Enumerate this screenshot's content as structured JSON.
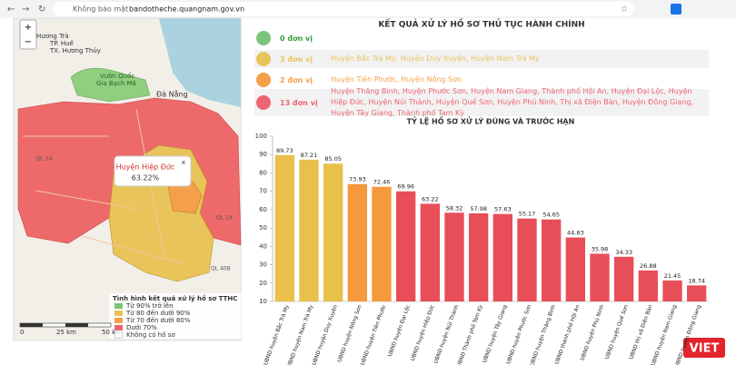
{
  "browser": {
    "security": "Không bảo mật",
    "url": "bandotheche.quangnam.gov.vn"
  },
  "map": {
    "zoom": [
      "+",
      "−"
    ],
    "places": [
      "Hương Trà",
      "TP. Huế",
      "TX. Hương Thủy",
      "Vườn Quốc",
      "Gia Bạch Mã",
      "Đà Nẵng"
    ],
    "roads": [
      "QL 14",
      "QL 1A",
      "QL 40B"
    ],
    "popup": {
      "title": "Huyện Hiệp Đức",
      "value": "63.22%",
      "close": "x"
    },
    "legend": {
      "title": "Tình hình kết quả xử lý hồ sơ TTHC",
      "items": [
        "Từ 90% trở lên",
        "Từ 80 đến dưới 90%",
        "Từ 70 đến dưới 80%",
        "Dưới 70%",
        "Không có hồ sơ"
      ]
    },
    "scale": [
      "0",
      "25 km",
      "50 k"
    ]
  },
  "summary": {
    "title": "KẾT QUẢ XỬ LÝ HỒ SƠ THỦ TỤC HÀNH CHÍNH",
    "rows": [
      {
        "count": "0 đơn vị",
        "color": "#7cc47a"
      },
      {
        "count": "3 đơn vị",
        "units": "Huyện Bắc Trà My, Huyện Duy Xuyên, Huyện Nam Trà My",
        "color": "#e8c45a"
      },
      {
        "count": "2 đơn vị",
        "units": "Huyện Tiên Phước, Huyện Nông Sơn",
        "color": "#f4a04a"
      },
      {
        "count": "13 đơn vị",
        "units": "Huyện Thăng Bình, Huyện Phước Sơn, Huyện Nam Giang, Thành phố Hội An, Huyện Đại Lộc, Huyện Hiệp Đức, Huyện Núi Thành, Huyện Quế Sơn, Huyện Phú Ninh, Thị xã Điện Bàn, Huyện Đông Giang, Huyện Tây Giang, Thành phố Tam Kỳ",
        "color": "#ee6470"
      }
    ]
  },
  "chart_data": {
    "type": "bar",
    "title": "TỶ LỆ HỒ SƠ XỬ LÝ ĐÚNG VÀ TRƯỚC HẠN",
    "categories": [
      "UBND huyện Bắc Trà My",
      "UBND huyện Nam Trà My",
      "UBND huyện Duy Xuyên",
      "UBND huyện Nông Sơn",
      "UBND huyện Tiên Phước",
      "UBND huyện Đại Lộc",
      "UBND huyện Hiệp Đức",
      "UBND huyện Núi Thành",
      "UBND Thành phố Tam Kỳ",
      "UBND huyện Tây Giang",
      "UBND huyện Phước Sơn",
      "UBND huyện Thăng Bình",
      "UBND thành phố Hội An",
      "UBND huyện Phú Ninh",
      "UBND huyện Quế Sơn",
      "UBND thị xã Điện Bàn",
      "UBND huyện Nam Giang",
      "UBND huyện Đông Giang"
    ],
    "values": [
      89.73,
      87.21,
      85.05,
      73.93,
      72.46,
      69.96,
      63.22,
      58.32,
      57.98,
      57.63,
      55.17,
      54.65,
      44.83,
      35.98,
      34.33,
      26.88,
      21.45,
      18.74
    ],
    "colors": [
      "#e8c04a",
      "#e8c04a",
      "#e8c04a",
      "#f49a3c",
      "#f49a3c",
      "#e84e58",
      "#e84e58",
      "#e84e58",
      "#e84e58",
      "#e84e58",
      "#e84e58",
      "#e84e58",
      "#e84e58",
      "#e84e58",
      "#e84e58",
      "#e84e58",
      "#e84e58",
      "#e84e58"
    ],
    "ylim": [
      10,
      100
    ],
    "yticks": [
      10,
      20,
      30,
      40,
      50,
      60,
      70,
      80,
      90,
      100
    ],
    "grid": false
  },
  "watermark": "VIET"
}
